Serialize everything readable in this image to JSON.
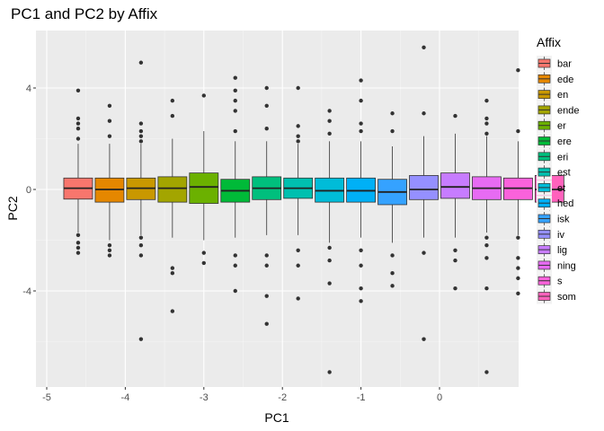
{
  "chart_data": {
    "type": "box",
    "title": "PC1 and PC2 by Affix",
    "xlabel": "PC1",
    "ylabel": "PC2",
    "xlim": [
      -5.05,
      1.0
    ],
    "ylim": [
      -7.8,
      6.0
    ],
    "x_ticks": [
      -5,
      -4,
      -3,
      -2,
      -1,
      0
    ],
    "y_ticks": [
      -4,
      0,
      4
    ],
    "grid": true,
    "legend": {
      "title": "Affix",
      "position": "right"
    },
    "series": [
      {
        "name": "bar",
        "color": "#F8766D",
        "x": -4.6,
        "box": [
          -0.38,
          0.05,
          0.45
        ],
        "whiskers": [
          -1.7,
          1.8
        ],
        "outliers": [
          3.9,
          2.8,
          2.6,
          2.4,
          2.0,
          -1.8,
          -2.1,
          -2.3,
          -2.5
        ]
      },
      {
        "name": "ede",
        "color": "#E58700",
        "x": -4.2,
        "box": [
          -0.5,
          0.0,
          0.45
        ],
        "whiskers": [
          -2.0,
          1.8
        ],
        "outliers": [
          3.3,
          2.7,
          2.1,
          -2.2,
          -2.4,
          -2.6
        ]
      },
      {
        "name": "en",
        "color": "#C99800",
        "x": -3.8,
        "box": [
          -0.4,
          0.05,
          0.45
        ],
        "whiskers": [
          -1.8,
          1.8
        ],
        "outliers": [
          5.0,
          2.6,
          2.3,
          2.1,
          1.9,
          -1.9,
          -2.2,
          -2.6,
          -5.9
        ]
      },
      {
        "name": "ende",
        "color": "#A3A500",
        "x": -3.4,
        "box": [
          -0.5,
          0.05,
          0.5
        ],
        "whiskers": [
          -1.9,
          2.0
        ],
        "outliers": [
          3.5,
          2.9,
          -3.1,
          -3.3,
          -4.8
        ]
      },
      {
        "name": "er",
        "color": "#6BB100",
        "x": -3.0,
        "box": [
          -0.55,
          0.1,
          0.65
        ],
        "whiskers": [
          -2.0,
          2.3
        ],
        "outliers": [
          3.7,
          -2.5,
          -2.9
        ]
      },
      {
        "name": "ere",
        "color": "#00BA38",
        "x": -2.6,
        "box": [
          -0.5,
          -0.05,
          0.4
        ],
        "whiskers": [
          -1.9,
          1.9
        ],
        "outliers": [
          4.4,
          3.9,
          3.5,
          3.1,
          2.3,
          -2.6,
          -3.0,
          -4.0
        ]
      },
      {
        "name": "eri",
        "color": "#00BF7D",
        "x": -2.2,
        "box": [
          -0.4,
          0.05,
          0.5
        ],
        "whiskers": [
          -1.8,
          1.9
        ],
        "outliers": [
          4.0,
          3.3,
          2.4,
          -2.6,
          -3.0,
          -4.2,
          -5.3
        ]
      },
      {
        "name": "est",
        "color": "#00C0AF",
        "x": -1.8,
        "box": [
          -0.35,
          0.05,
          0.45
        ],
        "whiskers": [
          -1.8,
          1.8
        ],
        "outliers": [
          4.0,
          2.5,
          2.1,
          1.9,
          -2.4,
          -3.0,
          -4.3
        ]
      },
      {
        "name": "et",
        "color": "#00BCD8",
        "x": -1.4,
        "box": [
          -0.5,
          -0.05,
          0.45
        ],
        "whiskers": [
          -2.1,
          1.9
        ],
        "outliers": [
          3.1,
          2.7,
          2.2,
          -2.3,
          -2.8,
          -3.7,
          -7.2
        ]
      },
      {
        "name": "hed",
        "color": "#00B0F6",
        "x": -1.0,
        "box": [
          -0.5,
          -0.05,
          0.45
        ],
        "whiskers": [
          -1.9,
          1.9
        ],
        "outliers": [
          4.3,
          3.5,
          2.6,
          2.3,
          -2.4,
          -3.0,
          -3.9,
          -4.4
        ]
      },
      {
        "name": "isk",
        "color": "#35A2FF",
        "x": -0.6,
        "box": [
          -0.6,
          -0.1,
          0.4
        ],
        "whiskers": [
          -2.1,
          1.7
        ],
        "outliers": [
          3.0,
          2.3,
          -2.6,
          -3.3,
          -3.8
        ]
      },
      {
        "name": "iv",
        "color": "#9590FF",
        "x": -0.2,
        "box": [
          -0.4,
          0.0,
          0.55
        ],
        "whiskers": [
          -1.9,
          2.1
        ],
        "outliers": [
          5.6,
          3.0,
          -2.5,
          -5.9
        ]
      },
      {
        "name": "lig",
        "color": "#C77CFF",
        "x": 0.2,
        "box": [
          -0.35,
          0.1,
          0.65
        ],
        "whiskers": [
          -1.9,
          2.2
        ],
        "outliers": [
          2.9,
          -2.4,
          -2.8,
          -3.9
        ]
      },
      {
        "name": "ning",
        "color": "#E76BF3",
        "x": 0.6,
        "box": [
          -0.4,
          0.05,
          0.5
        ],
        "whiskers": [
          -1.7,
          2.1
        ],
        "outliers": [
          3.5,
          2.8,
          2.6,
          2.2,
          -1.9,
          -2.2,
          -2.7,
          -3.9,
          -7.2
        ]
      },
      {
        "name": "s",
        "color": "#FA62DB",
        "x": 1.0,
        "box": [
          -0.4,
          0.05,
          0.45
        ],
        "whiskers": [
          -1.8,
          1.9
        ],
        "outliers": [
          4.7,
          2.3,
          -1.9,
          -2.7,
          -3.1,
          -3.5,
          -4.1
        ]
      },
      {
        "name": "som",
        "color": "#FF62BC",
        "x": 1.4,
        "box": [
          -0.5,
          0.0,
          0.55
        ],
        "whiskers": [
          -2.3,
          2.2
        ],
        "outliers": [
          4.3,
          2.4
        ]
      }
    ]
  }
}
